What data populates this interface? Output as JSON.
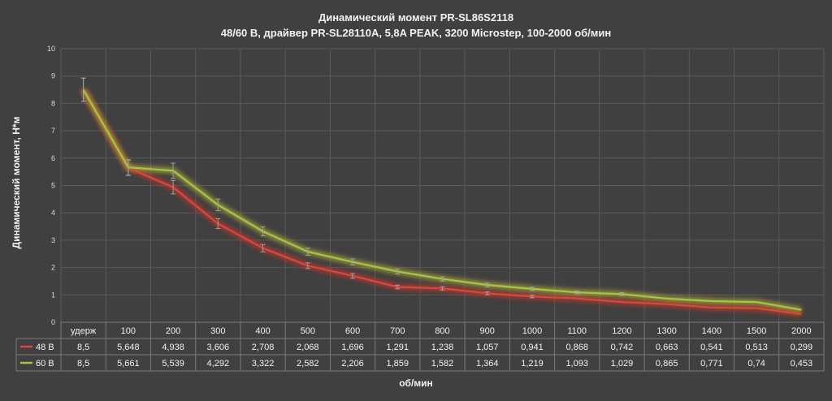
{
  "chart_data": {
    "type": "line",
    "title": "Динамический момент PR-SL86S2118",
    "subtitle": "48/60 В, драйвер PR-SL28110A, 5,8A PEAK, 3200 Microstep, 100-2000 об/мин",
    "ylabel": "Динамический момент, Н*м",
    "xlabel": "об/мин",
    "ylim": [
      0,
      10
    ],
    "yticks": [
      "0",
      "1",
      "2",
      "3",
      "4",
      "5",
      "6",
      "7",
      "8",
      "9",
      "10"
    ],
    "categories": [
      "удерж",
      "100",
      "200",
      "300",
      "400",
      "500",
      "600",
      "700",
      "800",
      "900",
      "1000",
      "1100",
      "1200",
      "1300",
      "1400",
      "1500",
      "2000"
    ],
    "grid": true,
    "legend": "data-table",
    "error_bars": true,
    "series": [
      {
        "name": "48 В",
        "color": "#e0443b",
        "glow": "#c0392b",
        "values": [
          8.5,
          5.648,
          4.938,
          3.606,
          2.708,
          2.068,
          1.696,
          1.291,
          1.238,
          1.057,
          0.941,
          0.868,
          0.742,
          0.663,
          0.541,
          0.513,
          0.299
        ],
        "labels": [
          "8,5",
          "5,648",
          "4,938",
          "3,606",
          "2,708",
          "2,068",
          "1,696",
          "1,291",
          "1,238",
          "1,057",
          "0,941",
          "0,868",
          "0,742",
          "0,663",
          "0,541",
          "0,513",
          "0,299"
        ]
      },
      {
        "name": "60 В",
        "color": "#9ccc3c",
        "glow": "#b5a83a",
        "values": [
          8.5,
          5.661,
          5.539,
          4.292,
          3.322,
          2.582,
          2.206,
          1.859,
          1.582,
          1.364,
          1.219,
          1.093,
          1.029,
          0.865,
          0.771,
          0.74,
          0.453
        ],
        "labels": [
          "8,5",
          "5,661",
          "5,539",
          "4,292",
          "3,322",
          "2,582",
          "2,206",
          "1,859",
          "1,582",
          "1,364",
          "1,219",
          "1,093",
          "1,029",
          "0,865",
          "0,771",
          "0,74",
          "0,453"
        ]
      }
    ]
  }
}
